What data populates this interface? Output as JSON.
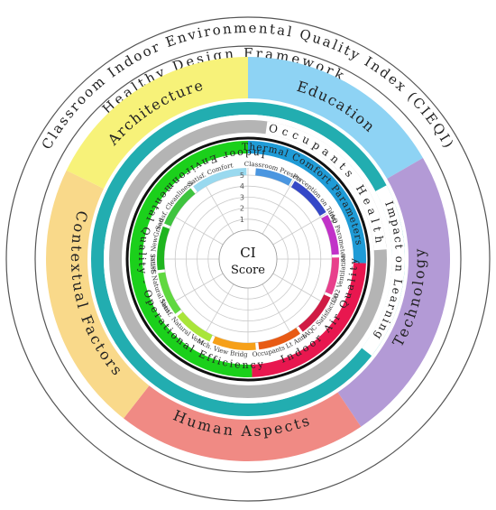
{
  "outer_title": "Classroom Indoor Environmental Quality Index (CIEQI)",
  "framework_title": "Healthy Design Framework",
  "framework_sectors": [
    {
      "label": "Education",
      "color": "#8ed3f4"
    },
    {
      "label": "Technology",
      "color": "#b39ad6"
    },
    {
      "label": "Human Aspects",
      "color": "#f08a84"
    },
    {
      "label": "Contextual Factors",
      "color": "#f9d98a"
    },
    {
      "label": "Architecture",
      "color": "#f7f279"
    }
  ],
  "occupants_title": "Occupants Health",
  "impact_title": "Impact on Learning",
  "domains": [
    {
      "label": "Thermal Comfort Parameters",
      "color": "#1f9bd6"
    },
    {
      "label": "Indoor Air Quality",
      "color": "#e8174f"
    },
    {
      "label": "Indoor Environmental Quality - Operational Efficiency",
      "color": "#1bd01b"
    }
  ],
  "parameters": [
    {
      "label": "Classroom Presets",
      "color": "#4a96e0"
    },
    {
      "label": "Perception on Temp",
      "color": "#3548c7"
    },
    {
      "label": "IAQ Parameters",
      "color": "#c132c8"
    },
    {
      "label": "CO2 Ventilation",
      "color": "#e8408c"
    },
    {
      "label": "IAQC Satisfaction",
      "color": "#d01b44"
    },
    {
      "label": "Occupants Lt Anm",
      "color": "#e85a14"
    },
    {
      "label": "Mch. View Bridg",
      "color": "#f6a019"
    },
    {
      "label": "Satisf. Natural Vent.",
      "color": "#a9e53a"
    },
    {
      "label": "Satisf. Natural Vent.",
      "color": "#60d840"
    },
    {
      "label": "Satisf. NewGrsed",
      "color": "#1fb51f"
    },
    {
      "label": "Satisf. Cleanliness",
      "color": "#3fc43f"
    },
    {
      "label": "Satisf. Comfort",
      "color": "#99d9ef"
    }
  ],
  "scale_ticks": [
    "1",
    "2",
    "3",
    "4",
    "5"
  ],
  "center_label": [
    "CI",
    "Score"
  ],
  "colors": {
    "teal": "#22adb0",
    "gray": "#b4b4b4",
    "black_ring": "#111111"
  }
}
